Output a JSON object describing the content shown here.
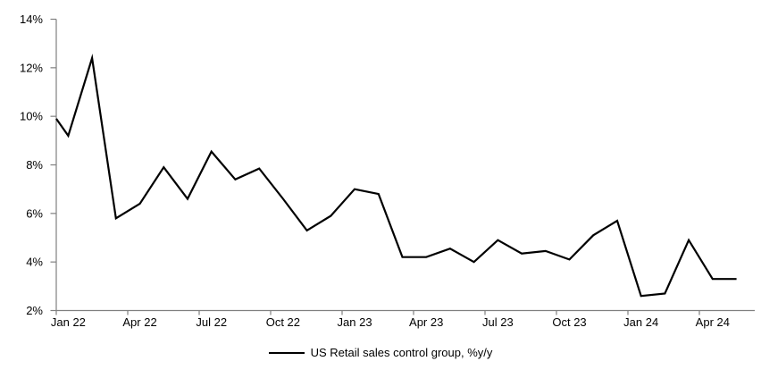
{
  "chart_data": {
    "type": "line",
    "title": "",
    "legend": "US Retail sales control group, %y/y",
    "legend_position": "bottom-center",
    "series_color": "#000000",
    "axis_color": "#808080",
    "text_color": "#000000",
    "grid": false,
    "ylim": [
      2,
      14
    ],
    "y_ticks": [
      14,
      12,
      10,
      8,
      6,
      4,
      2
    ],
    "y_tick_suffix": "%",
    "x": [
      "Jan 22",
      "Feb 22",
      "Mar 22",
      "Apr 22",
      "May 22",
      "Jun 22",
      "Jul 22",
      "Aug 22",
      "Sep 22",
      "Oct 22",
      "Nov 22",
      "Dec 22",
      "Jan 23",
      "Feb 23",
      "Mar 23",
      "Apr 23",
      "May 23",
      "Jun 23",
      "Jul 23",
      "Aug 23",
      "Sep 23",
      "Oct 23",
      "Nov 23",
      "Dec 23",
      "Jan 24",
      "Feb 24",
      "Mar 24",
      "Apr 24",
      "May 24"
    ],
    "values": [
      9.2,
      12.4,
      5.8,
      6.4,
      7.9,
      6.6,
      8.55,
      7.4,
      7.85,
      6.6,
      5.3,
      5.9,
      7.0,
      6.8,
      4.2,
      4.2,
      4.55,
      4.0,
      4.9,
      4.35,
      4.45,
      4.1,
      5.1,
      5.7,
      2.6,
      2.7,
      4.9,
      3.3,
      3.3
    ],
    "left_edge_entry_value": 9.9,
    "x_tick_labels": [
      "Jan 22",
      "Apr 22",
      "Jul 22",
      "Oct 22",
      "Jan 23",
      "Apr 23",
      "Jul 23",
      "Oct 23",
      "Jan 24",
      "Apr 24"
    ],
    "x_tick_label_every_n_months": 3
  }
}
